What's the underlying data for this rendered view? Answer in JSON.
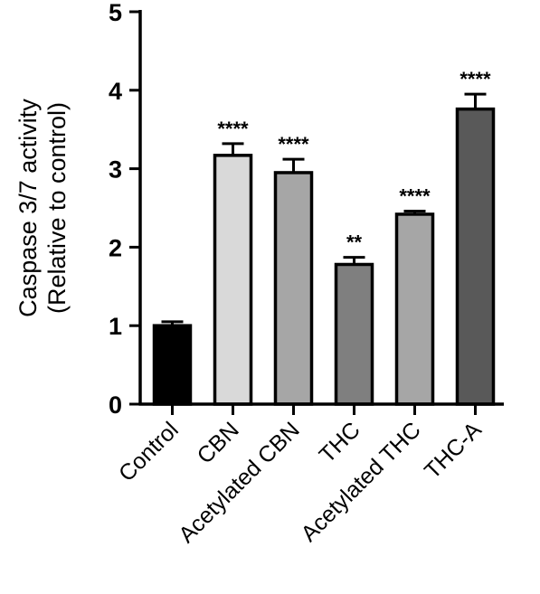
{
  "chart_data": {
    "type": "bar",
    "categories": [
      "Control",
      "CBN",
      "Acetylated CBN",
      "THC",
      "Acetylated THC",
      "THC-A"
    ],
    "values": [
      1.0,
      3.17,
      2.95,
      1.78,
      2.42,
      3.76
    ],
    "errors": [
      0.05,
      0.15,
      0.17,
      0.09,
      0.04,
      0.19
    ],
    "significance": [
      "",
      "****",
      "****",
      "**",
      "****",
      "****"
    ],
    "colors": [
      "#000000",
      "#d9d9d9",
      "#a6a6a6",
      "#7f7f7f",
      "#a6a6a6",
      "#595959"
    ],
    "ylabel_line1": "Caspase 3/7 activity",
    "ylabel_line2": "(Relative to control)",
    "ylim": [
      0,
      5
    ],
    "yticks": [
      "0",
      "1",
      "2",
      "3",
      "4",
      "5"
    ],
    "grid": false,
    "legend": "none"
  }
}
